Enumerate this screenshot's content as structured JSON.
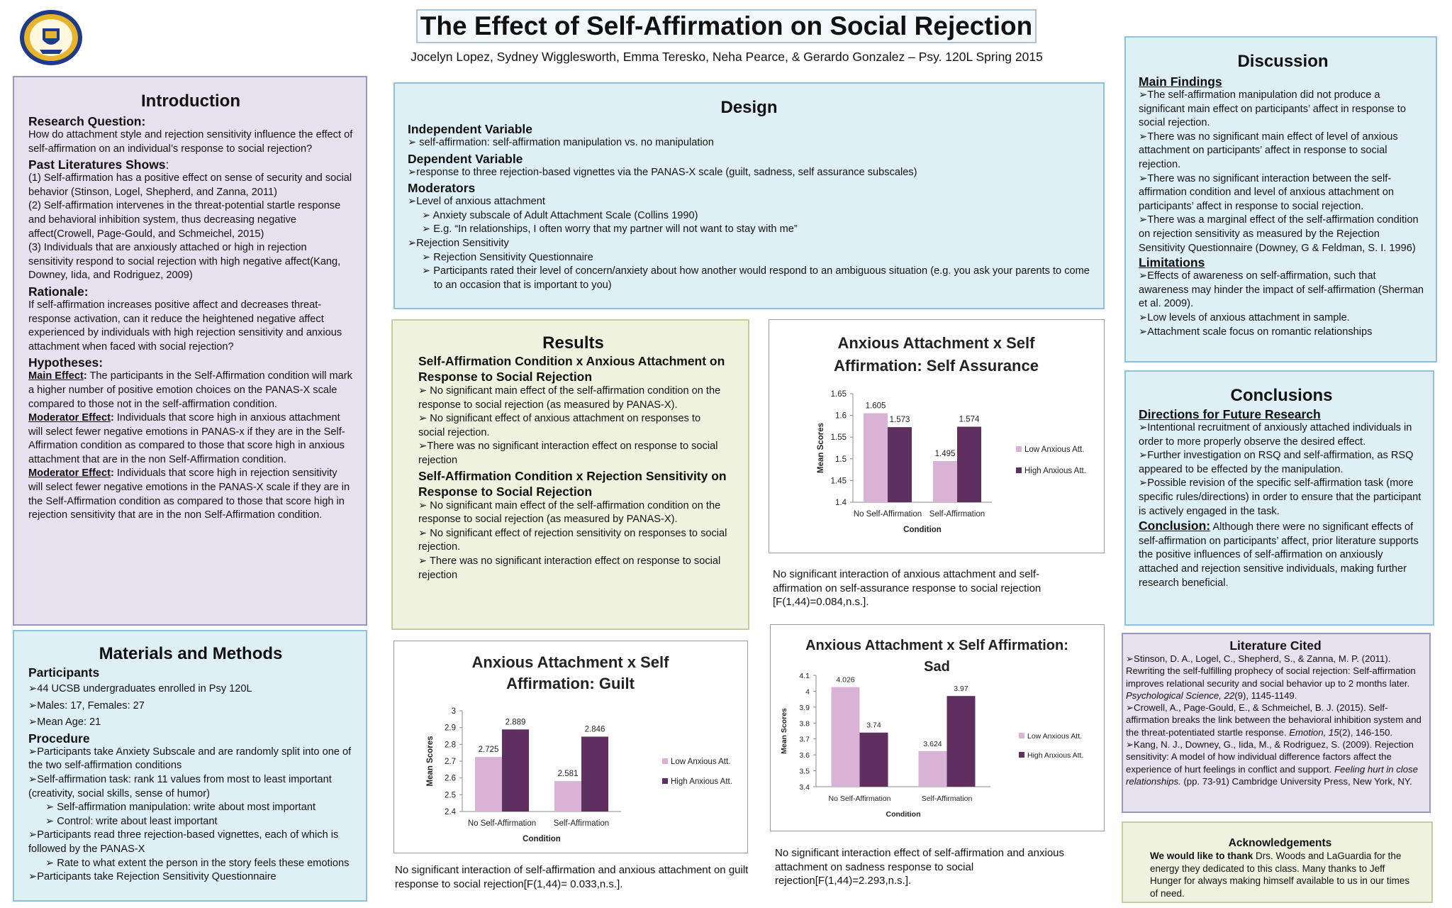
{
  "header": {
    "title": "The Effect of Self-Affirmation on Social Rejection",
    "authors": "Jocelyn Lopez, Sydney Wigglesworth, Emma Teresko, Neha Pearce, & Gerardo Gonzalez – Psy. 120L Spring 2015",
    "logo_text": "UNIVERSITY OF CALIFORNIA SANTA BARBARA"
  },
  "colors": {
    "low": "#d9b3d6",
    "high": "#5e2f5f",
    "lavender_panel": "#e6e1ef",
    "blue_panel": "#def0f6",
    "green_panel": "#eef2df"
  },
  "introduction": {
    "title": "Introduction",
    "rq_head": "Research Question:",
    "rq": "How do attachment style and rejection sensitivity influence the effect of self-affirmation on an individual’s response to social rejection?",
    "past_head": "Past Literatures Shows",
    "past_colon": ":",
    "past": [
      "(1) Self-affirmation has a positive effect on sense of security and social behavior (Stinson, Logel, Shepherd, and Zanna, 2011)",
      "(2) Self-affirmation intervenes in the threat-potential startle response and behavioral inhibition system, thus decreasing negative affect(Crowell, Page-Gould, and Schmeichel, 2015)",
      "(3) Individuals that are anxiously attached or high in rejection sensitivity respond to social rejection with high negative affect(Kang, Downey, Iida, and Rodriguez, 2009)"
    ],
    "rat_head": "Rationale:",
    "rat": "If self-affirmation increases positive affect and decreases threat-response activation, can it reduce the heightened negative affect experienced by individuals with high rejection sensitivity and anxious attachment when faced with social rejection?",
    "hyp_head": "Hypotheses:",
    "hyp": [
      {
        "lead": "Main Effect",
        "sep": ":",
        "text": " The participants in the Self-Affirmation condition will mark a higher number of positive emotion choices on the PANAS-X scale compared to those not in the self-affirmation condition."
      },
      {
        "lead": "Moderator Effect",
        "sep": ":",
        "text": " Individuals that score high in anxious attachment will select fewer negative emotions in PANAS-x if they are in the Self-Affirmation condition as compared to those that score high in anxious attachment that are in the non Self-Affirmation condition."
      },
      {
        "lead": "Moderator Effect",
        "sep": ":",
        "text": " Individuals that score high in rejection sensitivity will select fewer negative emotions in the PANAS-X scale if they are in the Self-Affirmation condition as compared to those that score high in rejection sensitivity that are in the non Self-Affirmation condition."
      }
    ]
  },
  "methods": {
    "title": "Materials and Methods",
    "part_head": "Participants",
    "participants": [
      "➢44 UCSB undergraduates enrolled in Psy 120L",
      "➢Males: 17, Females: 27",
      "➢Mean Age: 21"
    ],
    "proc_head": "Procedure",
    "procedure": [
      {
        "t": "➢Participants take Anxiety Subscale and are randomly split into one of the two self-affirmation conditions",
        "sub": false
      },
      {
        "t": "➢Self-affirmation task: rank 11 values from most to least important (creativity, social skills, sense of humor)",
        "sub": false
      },
      {
        "t": "➢ Self-affirmation manipulation: write about most important",
        "sub": true
      },
      {
        "t": "➢ Control: write about least important",
        "sub": true
      },
      {
        "t": "➢Participants read three rejection-based vignettes, each of which is followed by the PANAS-X",
        "sub": false
      },
      {
        "t": "➢ Rate to what extent the person in the story feels these emotions",
        "sub": true
      },
      {
        "t": "➢Participants take Rejection Sensitivity Questionnaire",
        "sub": false
      }
    ]
  },
  "design": {
    "title": "Design",
    "iv_head": "Independent Variable",
    "iv": "➢ self-affirmation: self-affirmation manipulation vs. no manipulation",
    "dv_head": "Dependent Variable",
    "dv": "➢response to three rejection-based vignettes via the PANAS-X scale (guilt, sadness, self assurance subscales)",
    "mod_head": "Moderators",
    "mod": [
      {
        "t": "➢Level of anxious attachment",
        "sub": false
      },
      {
        "t": "➢ Anxiety subscale of Adult Attachment Scale (Collins 1990)",
        "sub": true
      },
      {
        "t": "➢ E.g. “In relationships, I often worry that my partner will not want to stay with me”",
        "sub": true
      },
      {
        "t": "➢Rejection Sensitivity",
        "sub": false
      },
      {
        "t": "➢ Rejection Sensitivity Questionnaire",
        "sub": true
      },
      {
        "t": "➢ Participants rated their level of concern/anxiety about how another would respond to an ambiguous situation (e.g. you ask your parents to come to an occasion that is important to you)",
        "sub": true
      }
    ]
  },
  "results": {
    "title": "Results",
    "h1": "Self-Affirmation Condition x Anxious Attachment on Response to Social Rejection",
    "r1": [
      "➢ No significant main effect of the self-affirmation condition on the response to social rejection (as measured by PANAS-X).",
      "➢ No significant effect of anxious attachment on responses to social rejection.",
      "➢There was no significant interaction effect on response to social rejection"
    ],
    "h2": "Self-Affirmation Condition x Rejection Sensitivity on Response to Social Rejection",
    "r2": [
      "➢ No significant main effect of the self-affirmation condition on the response to social rejection (as measured by PANAS-X).",
      "➢ No significant effect of rejection sensitivity on responses to social rejection.",
      "➢ There was no significant interaction effect on response to social rejection"
    ]
  },
  "captions": {
    "assurance": "No significant interaction of anxious attachment and self-affirmation on self-assurance response to social rejection [F(1,44)=0.084,n.s.].",
    "guilt": "No significant interaction of self-affirmation and anxious attachment on guilt response to social rejection[F(1,44)= 0.033,n.s.].",
    "sad": "No significant interaction effect of self-affirmation and anxious attachment on sadness response to social rejection[F(1,44)=2.293,n.s.]."
  },
  "chart_data": [
    {
      "id": "assurance",
      "type": "bar",
      "title": [
        "Anxious Attachment x Self",
        "Affirmation: Self Assurance"
      ],
      "categories": [
        "No Self-Affirmation",
        "Self-Affirmation"
      ],
      "series": [
        {
          "name": "Low Anxious Att.",
          "values": [
            1.605,
            1.495
          ]
        },
        {
          "name": "High Anxious Att.",
          "values": [
            1.573,
            1.574
          ]
        }
      ],
      "labels": [
        [
          "1.605",
          "1.573"
        ],
        [
          "1.495",
          "1.574"
        ]
      ],
      "xlabel": "Condition",
      "ylabel": "Mean Scores",
      "ylim": [
        1.4,
        1.65
      ],
      "yticks": [
        "1.4",
        "1.45",
        "1.5",
        "1.55",
        "1.6",
        "1.65"
      ],
      "legend": "right",
      "grid": false
    },
    {
      "id": "guilt",
      "type": "bar",
      "title": [
        "Anxious Attachment x Self",
        "Affirmation: Guilt"
      ],
      "categories": [
        "No Self-Affirmation",
        "Self-Affirmation"
      ],
      "series": [
        {
          "name": "Low Anxious Att.",
          "values": [
            2.725,
            2.581
          ]
        },
        {
          "name": "High Anxious Att.",
          "values": [
            2.889,
            2.846
          ]
        }
      ],
      "labels": [
        [
          "2.725",
          "2.889"
        ],
        [
          "2.581",
          "2.846"
        ]
      ],
      "xlabel": "Condition",
      "ylabel": "Mean Scores",
      "ylim": [
        2.4,
        3
      ],
      "yticks": [
        "2.4",
        "2.5",
        "2.6",
        "2.7",
        "2.8",
        "2.9",
        "3"
      ],
      "legend": "right",
      "grid": false
    },
    {
      "id": "sad",
      "type": "bar",
      "title": [
        "Anxious Attachment x Self Affirmation:",
        "Sad"
      ],
      "categories": [
        "No Self-Affirmation",
        "Self-Affirmation"
      ],
      "series": [
        {
          "name": "Low Anxious Att.",
          "values": [
            4.026,
            3.624
          ]
        },
        {
          "name": "High Anxious Att.",
          "values": [
            3.74,
            3.97
          ]
        }
      ],
      "labels": [
        [
          "4.026",
          "3.74"
        ],
        [
          "3.624",
          "3.97"
        ]
      ],
      "xlabel": "Condition",
      "ylabel": "Mean Scores",
      "ylim": [
        3.4,
        4.1
      ],
      "yticks": [
        "3.4",
        "3.5",
        "3.6",
        "3.7",
        "3.8",
        "3.9",
        "4",
        "4.1"
      ],
      "legend": "right",
      "grid": false
    }
  ],
  "discussion": {
    "title": "Discussion",
    "mf_head": "Main Findings",
    "mf": [
      "➢The self-affirmation manipulation did not produce a significant main effect on participants’ affect in response to social rejection.",
      "➢There was no significant main effect of level of anxious attachment on participants’ affect in response to social rejection.",
      "➢There was no significant interaction between the self-affirmation condition and level of anxious attachment on participants’ affect in response to social rejection.",
      "➢There was a marginal effect of the self-affirmation condition on rejection sensitivity as measured by the Rejection Sensitivity Questionnaire (Downey, G & Feldman, S. I. 1996)"
    ],
    "lim_head": "Limitations",
    "lim": [
      "➢Effects of awareness on self-affirmation, such that awareness may hinder the impact of self-affirmation (Sherman et al. 2009).",
      "➢Low levels of anxious attachment in sample.",
      "➢Attachment scale focus on romantic relationships"
    ]
  },
  "conclusions": {
    "title": "Conclusions",
    "dir_head": "Directions for Future Research",
    "dir": [
      "➢Intentional recruitment of anxiously attached individuals in order to more properly observe the desired effect.",
      "➢Further investigation on RSQ and self-affirmation, as RSQ appeared to be effected by the manipulation.",
      "➢Possible revision of the specific self-affirmation task (more specific rules/directions) in order to ensure that the participant is actively engaged in the task."
    ],
    "conc_lead": "Conclusion:",
    "conc": " Although there were no significant effects of self-affirmation on participants’ affect, prior literature supports the positive influences of self-affirmation on anxiously attached  and rejection sensitive individuals, making further research beneficial."
  },
  "literature": {
    "title": "Literature Cited",
    "refs": [
      {
        "pre": "➢Stinson, D. A., Logel, C., Shepherd, S., & Zanna, M. P. (2011). Rewriting the self-fulfilling prophecy of social rejection: Self-affirmation improves relational security and social behavior up to 2 months later. ",
        "ital": "Psychological Science, 22",
        "post": "(9), 1145-1149."
      },
      {
        "pre": "➢Crowell, A., Page-Gould, E., & Schmeichel, B. J. (2015). Self-affirmation breaks the link between the behavioral inhibition system and the threat-potentiated startle response. ",
        "ital": "Emotion, 15",
        "post": "(2), 146-150."
      },
      {
        "pre": "➢Kang, N. J., Downey, G., Iida, M., & Rodriguez, S. (2009). Rejection sensitivity: A model of how individual difference factors affect the experience of hurt feelings in conflict and support. ",
        "ital": "Feeling hurt in close relationships.",
        "post": " (pp. 73-91) Cambridge University Press, New York, NY."
      }
    ]
  },
  "acknowledgements": {
    "title": "Acknowledgements",
    "lead": "We would like to thank",
    "text": " Drs. Woods and LaGuardia for the energy they dedicated to this class. Many thanks to Jeff Hunger for always making himself available to us in our times of need."
  }
}
